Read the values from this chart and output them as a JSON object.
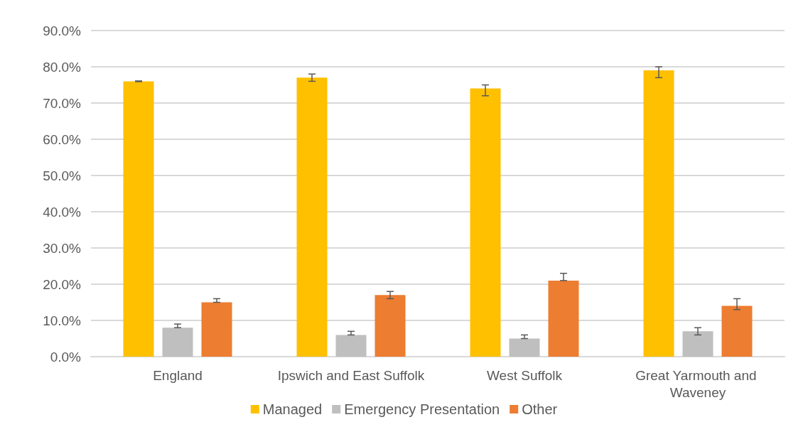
{
  "chart_data": {
    "type": "bar",
    "categories": [
      "England",
      "Ipswich and East Suffolk",
      "West Suffolk",
      "Great Yarmouth and Waveney"
    ],
    "series": [
      {
        "name": "Managed",
        "color": "#ffc000",
        "values": [
          76,
          77,
          74,
          79
        ],
        "errors": [
          [
            75.9,
            76.1
          ],
          [
            76,
            78
          ],
          [
            72,
            75
          ],
          [
            77,
            80
          ]
        ]
      },
      {
        "name": "Emergency Presentation",
        "color": "#bfbfbf",
        "values": [
          8,
          6,
          5,
          7
        ],
        "errors": [
          [
            8,
            9
          ],
          [
            6,
            7
          ],
          [
            5,
            6
          ],
          [
            6,
            8
          ]
        ]
      },
      {
        "name": "Other",
        "color": "#ed7d31",
        "values": [
          15,
          17,
          21,
          14
        ],
        "errors": [
          [
            15,
            16
          ],
          [
            16,
            18
          ],
          [
            21,
            23
          ],
          [
            13,
            16
          ]
        ]
      }
    ],
    "ylim": [
      0,
      90
    ],
    "yticks": [
      {
        "value": 0,
        "label": "0.0%"
      },
      {
        "value": 10,
        "label": "10.0%"
      },
      {
        "value": 20,
        "label": "20.0%"
      },
      {
        "value": 30,
        "label": "30.0%"
      },
      {
        "value": 40,
        "label": "40.0%"
      },
      {
        "value": 50,
        "label": "50.0%"
      },
      {
        "value": 60,
        "label": "60.0%"
      },
      {
        "value": 70,
        "label": "70.0%"
      },
      {
        "value": 80,
        "label": "80.0%"
      },
      {
        "value": 90,
        "label": "90.0%"
      }
    ],
    "grid": "y",
    "legend": "bottom"
  }
}
